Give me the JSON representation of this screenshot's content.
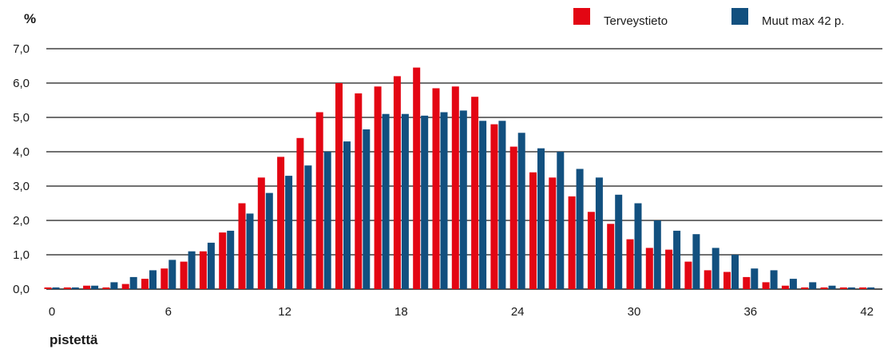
{
  "chart_data": {
    "type": "bar",
    "ylabel": "%",
    "xlabel": "pistettä",
    "ylim": [
      0,
      7
    ],
    "xlim": [
      0,
      42
    ],
    "y_ticks": [
      "0,0",
      "1,0",
      "2,0",
      "3,0",
      "4,0",
      "5,0",
      "6,0",
      "7,0"
    ],
    "x_ticks": [
      "0",
      "6",
      "12",
      "18",
      "24",
      "30",
      "36",
      "42"
    ],
    "grid": true,
    "legend_position": "top-right",
    "x": [
      0,
      1,
      2,
      3,
      4,
      5,
      6,
      7,
      8,
      9,
      10,
      11,
      12,
      13,
      14,
      15,
      16,
      17,
      18,
      19,
      20,
      21,
      22,
      23,
      24,
      25,
      26,
      27,
      28,
      29,
      30,
      31,
      32,
      33,
      34,
      35,
      36,
      37,
      38,
      39,
      40,
      41,
      42
    ],
    "series": [
      {
        "name": "Terveystieto",
        "color": "#e30613",
        "values": [
          0.05,
          0.05,
          0.1,
          0.05,
          0.15,
          0.3,
          0.6,
          0.8,
          1.1,
          1.65,
          2.5,
          3.25,
          3.85,
          4.4,
          5.15,
          6.0,
          5.7,
          5.9,
          6.2,
          6.45,
          5.85,
          5.9,
          5.6,
          4.8,
          4.15,
          3.4,
          3.25,
          2.7,
          2.25,
          1.9,
          1.45,
          1.2,
          1.15,
          0.8,
          0.55,
          0.5,
          0.35,
          0.2,
          0.1,
          0.05,
          0.05,
          0.05,
          0.05
        ]
      },
      {
        "name": "Muut max 42 p.",
        "color": "#12507f",
        "values": [
          0.05,
          0.05,
          0.1,
          0.2,
          0.35,
          0.55,
          0.85,
          1.1,
          1.35,
          1.7,
          2.2,
          2.8,
          3.3,
          3.6,
          4.0,
          4.3,
          4.65,
          5.1,
          5.1,
          5.05,
          5.15,
          5.2,
          4.9,
          4.9,
          4.55,
          4.1,
          4.0,
          3.5,
          3.25,
          2.75,
          2.5,
          2.0,
          1.7,
          1.6,
          1.2,
          1.0,
          0.6,
          0.55,
          0.3,
          0.2,
          0.1,
          0.05,
          0.05
        ]
      }
    ]
  }
}
